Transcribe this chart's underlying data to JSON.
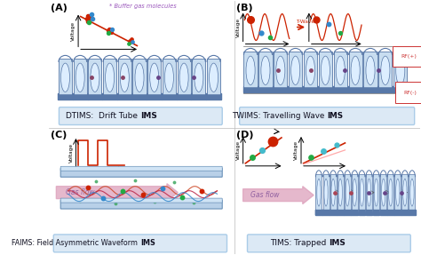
{
  "bg_color": "#ffffff",
  "box_fill": "#dce9f5",
  "box_edge": "#aacce8",
  "panel_A_label": "(A)",
  "panel_B_label": "(B)",
  "panel_C_label": "(C)",
  "panel_D_label": "(D)",
  "buffer_gas_text": "* Buffer gas molecules",
  "buffer_gas_color": "#9955bb",
  "twaves_text": "T-Waves",
  "rf_plus_text": "RF(+)",
  "rf_minus_text": "RF(-)",
  "gas_flow_text": "Gas flow",
  "gas_flow_color": "#c080a0",
  "voltage_text": "Voltage",
  "label_A_normal": "DTIMS:  Drift Tube ",
  "label_A_bold": "IMS",
  "label_B_normal": "TWIMS: Travelling Wave ",
  "label_B_bold": "IMS",
  "label_C_normal": "FAIMS: Field Asymmetric Waveform ",
  "label_C_bold": "IMS",
  "label_D_normal": "TIMS: Trapped ",
  "label_D_bold": "IMS",
  "red": "#cc2200",
  "blue": "#3388cc",
  "green": "#22aa44",
  "cyan": "#44bbcc",
  "tube_light": "#c8ddf0",
  "tube_mid": "#9ab8d8",
  "tube_dark": "#5878a8",
  "tube_inner": "#e0ecf8"
}
